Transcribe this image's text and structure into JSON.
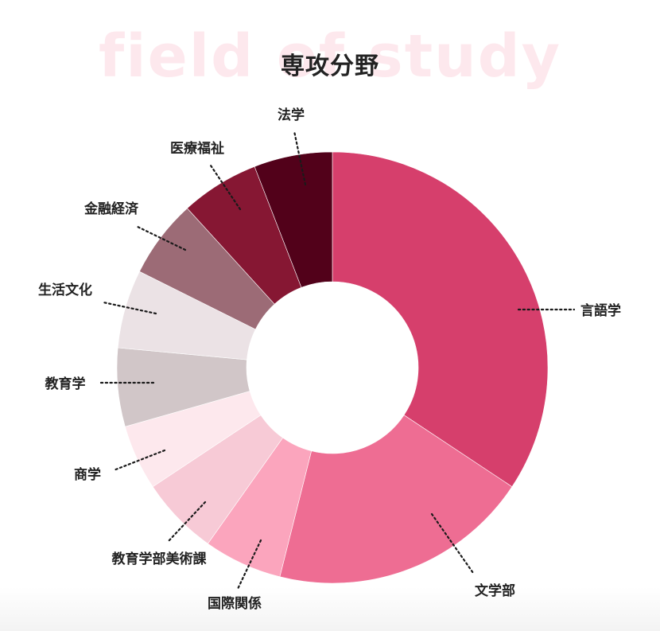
{
  "watermark": "field of study",
  "chart_data": {
    "type": "pie",
    "donut": true,
    "title": "専攻分野",
    "categories": [
      "言語学",
      "文学部",
      "国際関係",
      "教育学部美術課",
      "商学",
      "教育学",
      "生活文化",
      "金融経済",
      "医療福祉",
      "法学"
    ],
    "values": [
      35,
      20,
      6,
      6,
      5,
      6,
      6,
      6,
      6,
      6
    ],
    "colors": [
      "#d63f6c",
      "#ee6d93",
      "#fba5bd",
      "#f7cad6",
      "#fde8ed",
      "#d1c6c8",
      "#ebe2e5",
      "#9c6b76",
      "#861733",
      "#52011a"
    ]
  }
}
